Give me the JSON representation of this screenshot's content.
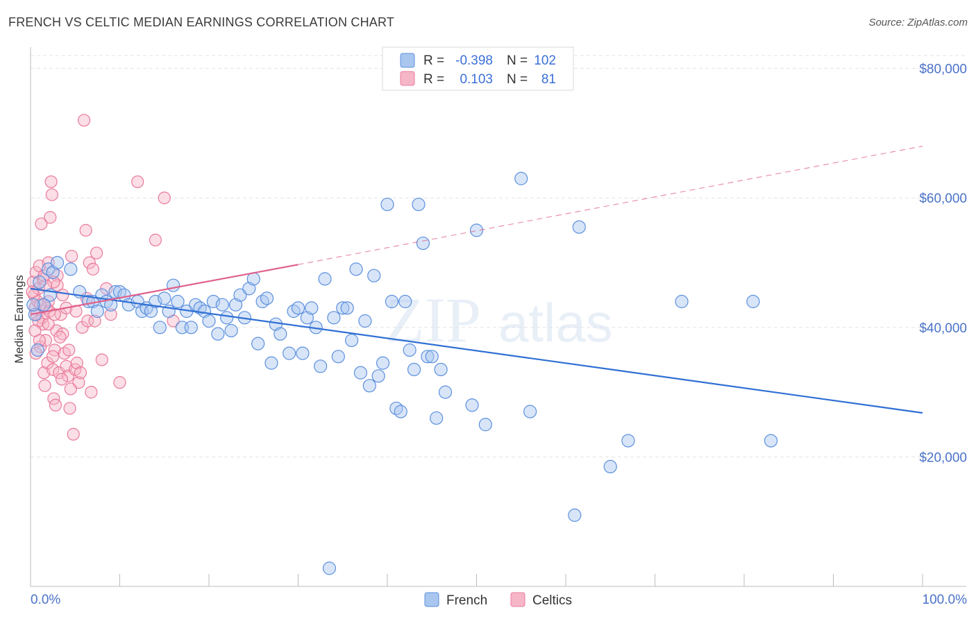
{
  "title": "FRENCH VS CELTIC MEDIAN EARNINGS CORRELATION CHART",
  "source": "Source: ZipAtlas.com",
  "watermark": {
    "zip": "ZIP",
    "atlas": "atlas"
  },
  "colors": {
    "french_fill": "#a9c6ef",
    "french_stroke": "#5b8fde",
    "french_line": "#2f6fd3",
    "celtics_fill": "#f6b6c8",
    "celtics_stroke": "#e9799b",
    "celtics_line": "#e05f89",
    "grid": "#e3e3e3",
    "axis_text": "#4a72c8"
  },
  "legend": {
    "rows": [
      {
        "r_label": "R =",
        "r_value": "-0.398",
        "n_label": "N =",
        "n_value": "102"
      },
      {
        "r_label": "R =",
        "r_value": "0.103",
        "n_label": "N =",
        "n_value": "81"
      }
    ]
  },
  "bottom_legend": {
    "french": "French",
    "celtics": "Celtics"
  },
  "chart_data": {
    "type": "scatter",
    "title": "FRENCH VS CELTIC MEDIAN EARNINGS CORRELATION CHART",
    "xlabel": "",
    "ylabel": "Median Earnings",
    "xlim": [
      0,
      100
    ],
    "ylim": [
      0,
      82000
    ],
    "x_tick_labels": [
      "0.0%",
      "100.0%"
    ],
    "y_ticks": [
      20000,
      40000,
      60000,
      80000
    ],
    "y_tick_labels": [
      "$20,000",
      "$40,000",
      "$60,000",
      "$80,000"
    ],
    "grid": true,
    "legend_position": "top-center",
    "series": [
      {
        "name": "French",
        "r": -0.398,
        "n": 102,
        "trend": {
          "x": [
            0,
            100
          ],
          "y": [
            46000,
            26800
          ],
          "style": "solid"
        },
        "points": [
          [
            0.5,
            42000
          ],
          [
            0.8,
            36500
          ],
          [
            1.0,
            47000
          ],
          [
            1.5,
            43500
          ],
          [
            2.0,
            49000
          ],
          [
            2.5,
            48500
          ],
          [
            3.0,
            50000
          ],
          [
            4.5,
            49000
          ],
          [
            5.5,
            45500
          ],
          [
            6.5,
            44000
          ],
          [
            7.0,
            44000
          ],
          [
            7.5,
            42500
          ],
          [
            8.0,
            45000
          ],
          [
            8.5,
            44000
          ],
          [
            9.0,
            43500
          ],
          [
            9.5,
            45500
          ],
          [
            10.0,
            45500
          ],
          [
            10.5,
            45000
          ],
          [
            11.0,
            43500
          ],
          [
            12.0,
            44000
          ],
          [
            12.5,
            42500
          ],
          [
            13.0,
            43000
          ],
          [
            13.5,
            42500
          ],
          [
            14.0,
            44000
          ],
          [
            14.5,
            40000
          ],
          [
            15.0,
            44500
          ],
          [
            15.5,
            42500
          ],
          [
            16.0,
            46500
          ],
          [
            16.5,
            44000
          ],
          [
            17.0,
            40000
          ],
          [
            17.5,
            42500
          ],
          [
            18.0,
            40000
          ],
          [
            18.5,
            43500
          ],
          [
            19.0,
            43000
          ],
          [
            19.5,
            42500
          ],
          [
            20.0,
            41000
          ],
          [
            20.5,
            44000
          ],
          [
            21.0,
            39000
          ],
          [
            21.5,
            43500
          ],
          [
            22.0,
            41500
          ],
          [
            22.5,
            39500
          ],
          [
            23.0,
            43500
          ],
          [
            23.5,
            45000
          ],
          [
            24.0,
            41500
          ],
          [
            24.5,
            46000
          ],
          [
            25.0,
            47500
          ],
          [
            25.5,
            37500
          ],
          [
            26.0,
            44000
          ],
          [
            26.5,
            44500
          ],
          [
            27.0,
            34500
          ],
          [
            27.5,
            40500
          ],
          [
            28.0,
            39000
          ],
          [
            29.0,
            36000
          ],
          [
            29.5,
            42500
          ],
          [
            30.0,
            43000
          ],
          [
            30.5,
            36000
          ],
          [
            31.0,
            41500
          ],
          [
            31.5,
            43000
          ],
          [
            32.0,
            40000
          ],
          [
            32.5,
            34000
          ],
          [
            33.0,
            47500
          ],
          [
            33.5,
            2800
          ],
          [
            34.0,
            41500
          ],
          [
            34.5,
            35500
          ],
          [
            35.0,
            43000
          ],
          [
            35.5,
            43000
          ],
          [
            36.0,
            38000
          ],
          [
            36.5,
            49000
          ],
          [
            37.0,
            33000
          ],
          [
            37.5,
            41000
          ],
          [
            38.0,
            31000
          ],
          [
            38.5,
            48000
          ],
          [
            39.0,
            32500
          ],
          [
            39.5,
            34500
          ],
          [
            40.0,
            59000
          ],
          [
            40.5,
            44000
          ],
          [
            41.0,
            27500
          ],
          [
            41.5,
            27000
          ],
          [
            42.0,
            44000
          ],
          [
            42.5,
            36500
          ],
          [
            43.0,
            33500
          ],
          [
            43.5,
            59000
          ],
          [
            44.0,
            53000
          ],
          [
            44.5,
            35500
          ],
          [
            45.0,
            35500
          ],
          [
            45.5,
            26000
          ],
          [
            46.0,
            33500
          ],
          [
            46.5,
            30000
          ],
          [
            49.5,
            28000
          ],
          [
            50.0,
            55000
          ],
          [
            51.0,
            25000
          ],
          [
            55.0,
            63000
          ],
          [
            56.0,
            27000
          ],
          [
            61.0,
            11000
          ],
          [
            61.5,
            55500
          ],
          [
            65.0,
            18500
          ],
          [
            67.0,
            22500
          ],
          [
            73.0,
            44000
          ],
          [
            81.0,
            44000
          ],
          [
            83.0,
            22500
          ],
          [
            0.3,
            43500
          ],
          [
            2.2,
            45000
          ]
        ]
      },
      {
        "name": "Celtics",
        "r": 0.103,
        "n": 81,
        "trend_solid": {
          "x": [
            0,
            30
          ],
          "y": [
            42000,
            49700
          ]
        },
        "trend_dashed": {
          "x": [
            30,
            100
          ],
          "y": [
            49700,
            68000
          ]
        },
        "points": [
          [
            0.3,
            47000
          ],
          [
            0.4,
            45000
          ],
          [
            0.5,
            43000
          ],
          [
            0.6,
            48500
          ],
          [
            0.7,
            42000
          ],
          [
            0.8,
            44000
          ],
          [
            0.9,
            46000
          ],
          [
            1.0,
            49500
          ],
          [
            1.1,
            37000
          ],
          [
            1.2,
            56000
          ],
          [
            1.3,
            41500
          ],
          [
            1.4,
            47500
          ],
          [
            1.5,
            33000
          ],
          [
            1.6,
            31000
          ],
          [
            1.7,
            38000
          ],
          [
            1.8,
            43000
          ],
          [
            1.9,
            34500
          ],
          [
            2.0,
            50000
          ],
          [
            2.1,
            42500
          ],
          [
            2.2,
            57000
          ],
          [
            2.3,
            62500
          ],
          [
            2.4,
            60500
          ],
          [
            2.5,
            33500
          ],
          [
            2.6,
            29000
          ],
          [
            2.7,
            36500
          ],
          [
            2.8,
            28000
          ],
          [
            2.9,
            39500
          ],
          [
            3.0,
            48000
          ],
          [
            3.2,
            33000
          ],
          [
            3.4,
            42000
          ],
          [
            3.6,
            39000
          ],
          [
            3.8,
            36000
          ],
          [
            4.0,
            34000
          ],
          [
            4.2,
            32500
          ],
          [
            4.4,
            27500
          ],
          [
            4.6,
            51000
          ],
          [
            4.8,
            23500
          ],
          [
            5.0,
            33500
          ],
          [
            5.2,
            34500
          ],
          [
            5.4,
            31500
          ],
          [
            5.6,
            33000
          ],
          [
            5.8,
            40000
          ],
          [
            6.0,
            72000
          ],
          [
            6.2,
            55000
          ],
          [
            6.4,
            41000
          ],
          [
            6.6,
            50000
          ],
          [
            6.8,
            30000
          ],
          [
            7.0,
            49000
          ],
          [
            7.2,
            41000
          ],
          [
            7.4,
            51500
          ],
          [
            8.0,
            35000
          ],
          [
            8.5,
            46000
          ],
          [
            9.0,
            42000
          ],
          [
            10.0,
            31500
          ],
          [
            12.0,
            62500
          ],
          [
            14.0,
            53500
          ],
          [
            15.0,
            60000
          ],
          [
            16.0,
            41000
          ],
          [
            1.0,
            38000
          ],
          [
            2.0,
            44000
          ],
          [
            3.0,
            46500
          ],
          [
            4.0,
            43000
          ],
          [
            0.6,
            36000
          ],
          [
            1.4,
            40500
          ],
          [
            2.6,
            47000
          ],
          [
            3.6,
            45000
          ],
          [
            0.9,
            41000
          ],
          [
            1.7,
            46500
          ],
          [
            2.5,
            35500
          ],
          [
            3.3,
            38500
          ],
          [
            4.3,
            36500
          ],
          [
            5.1,
            42500
          ],
          [
            6.3,
            44500
          ],
          [
            0.2,
            45500
          ],
          [
            0.5,
            39500
          ],
          [
            1.1,
            43500
          ],
          [
            1.5,
            48000
          ],
          [
            2.0,
            40500
          ],
          [
            2.7,
            42000
          ],
          [
            3.5,
            32000
          ],
          [
            4.5,
            30500
          ]
        ]
      }
    ]
  }
}
